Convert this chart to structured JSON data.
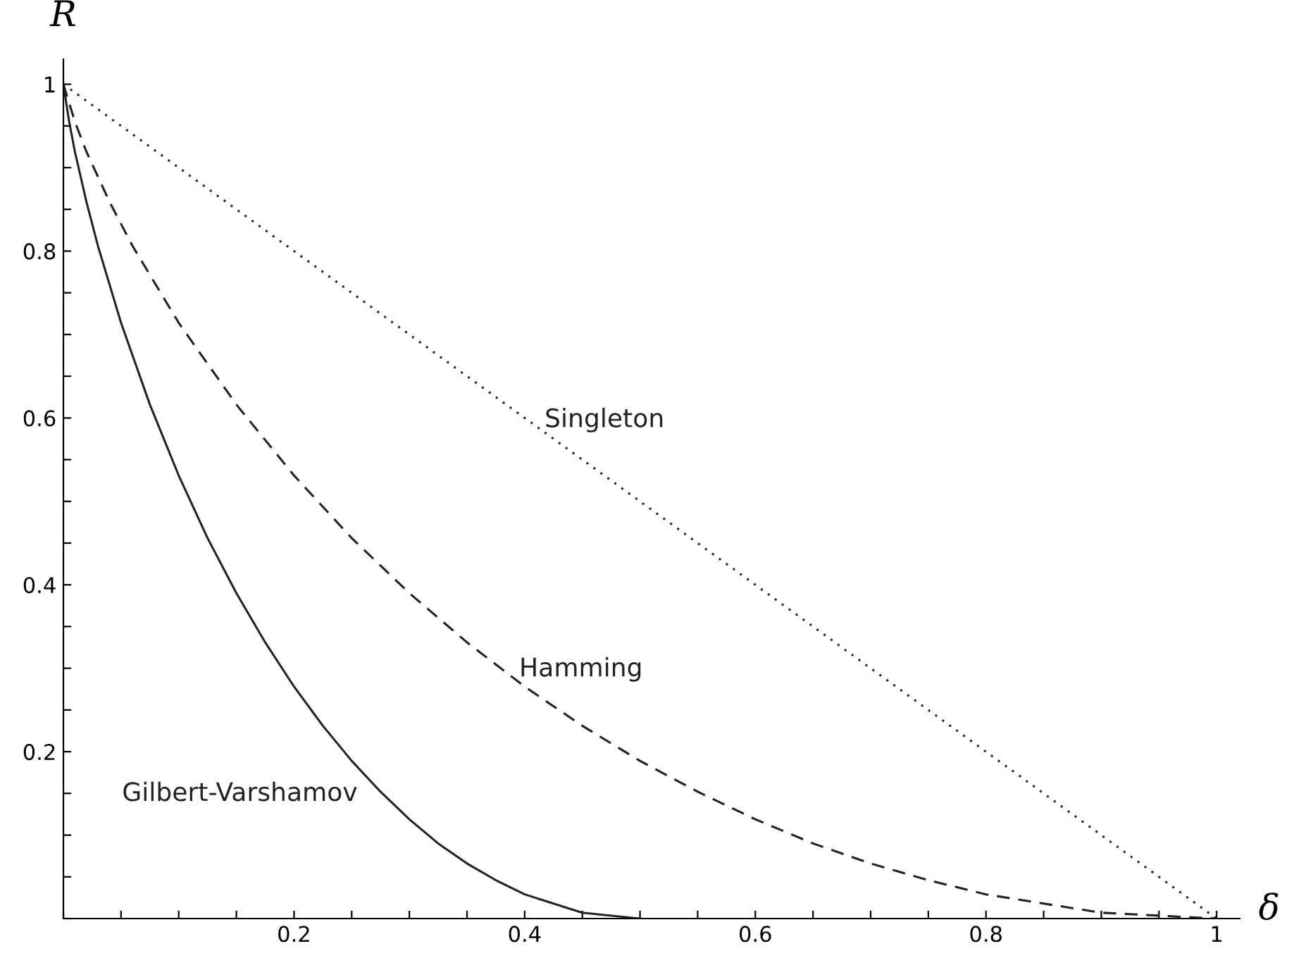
{
  "chart_data": {
    "type": "line",
    "xlabel": "δ",
    "ylabel": "R",
    "series": [
      {
        "name": "Singleton",
        "color": "#222222",
        "line_style": "dotted",
        "x": [
          0,
          1
        ],
        "values": [
          1,
          0
        ]
      },
      {
        "name": "Hamming",
        "color": "#222222",
        "line_style": "dashed",
        "x": [
          0,
          0.01,
          0.02,
          0.04,
          0.06,
          0.1,
          0.15,
          0.2,
          0.25,
          0.3,
          0.35,
          0.4,
          0.45,
          0.5,
          0.55,
          0.6,
          0.65,
          0.7,
          0.75,
          0.8,
          0.9,
          1
        ],
        "values": [
          1,
          0.955,
          0.919,
          0.859,
          0.806,
          0.714,
          0.616,
          0.531,
          0.456,
          0.39,
          0.331,
          0.278,
          0.231,
          0.189,
          0.152,
          0.119,
          0.09,
          0.066,
          0.046,
          0.029,
          0.007,
          0
        ]
      },
      {
        "name": "Gilbert-Varshamov",
        "color": "#222222",
        "line_style": "solid",
        "x": [
          0,
          0.005,
          0.01,
          0.02,
          0.03,
          0.05,
          0.075,
          0.1,
          0.125,
          0.15,
          0.175,
          0.2,
          0.225,
          0.25,
          0.275,
          0.3,
          0.325,
          0.35,
          0.375,
          0.4,
          0.45,
          0.5
        ],
        "values": [
          1,
          0.955,
          0.919,
          0.859,
          0.806,
          0.714,
          0.616,
          0.531,
          0.456,
          0.39,
          0.331,
          0.278,
          0.231,
          0.189,
          0.152,
          0.119,
          0.09,
          0.066,
          0.046,
          0.029,
          0.007,
          0
        ]
      }
    ],
    "xlim": [
      0,
      1.02
    ],
    "ylim": [
      0,
      1.03
    ],
    "xticks": [
      {
        "value": 0,
        "label": null
      },
      {
        "value": 0.05,
        "label": null
      },
      {
        "value": 0.1,
        "label": null
      },
      {
        "value": 0.15,
        "label": null
      },
      0.2,
      {
        "value": 0.25,
        "label": null
      },
      {
        "value": 0.3,
        "label": null
      },
      {
        "value": 0.35,
        "label": null
      },
      0.4,
      {
        "value": 0.45,
        "label": null
      },
      {
        "value": 0.5,
        "label": null
      },
      {
        "value": 0.55,
        "label": null
      },
      0.6,
      {
        "value": 0.65,
        "label": null
      },
      {
        "value": 0.7,
        "label": null
      },
      {
        "value": 0.75,
        "label": null
      },
      0.8,
      {
        "value": 0.85,
        "label": null
      },
      {
        "value": 0.9,
        "label": null
      },
      {
        "value": 0.95,
        "label": null
      },
      1
    ],
    "yticks": [
      {
        "value": 0,
        "label": null
      },
      {
        "value": 0.05,
        "label": null
      },
      {
        "value": 0.1,
        "label": null
      },
      {
        "value": 0.15,
        "label": null
      },
      0.2,
      {
        "value": 0.25,
        "label": null
      },
      {
        "value": 0.3,
        "label": null
      },
      {
        "value": 0.35,
        "label": null
      },
      0.4,
      {
        "value": 0.45,
        "label": null
      },
      {
        "value": 0.5,
        "label": null
      },
      {
        "value": 0.55,
        "label": null
      },
      0.6,
      {
        "value": 0.65,
        "label": null
      },
      {
        "value": 0.7,
        "label": null
      },
      {
        "value": 0.75,
        "label": null
      },
      0.8,
      {
        "value": 0.85,
        "label": null
      },
      {
        "value": 0.9,
        "label": null
      },
      {
        "value": 0.95,
        "label": null
      },
      1
    ],
    "grid": false
  }
}
